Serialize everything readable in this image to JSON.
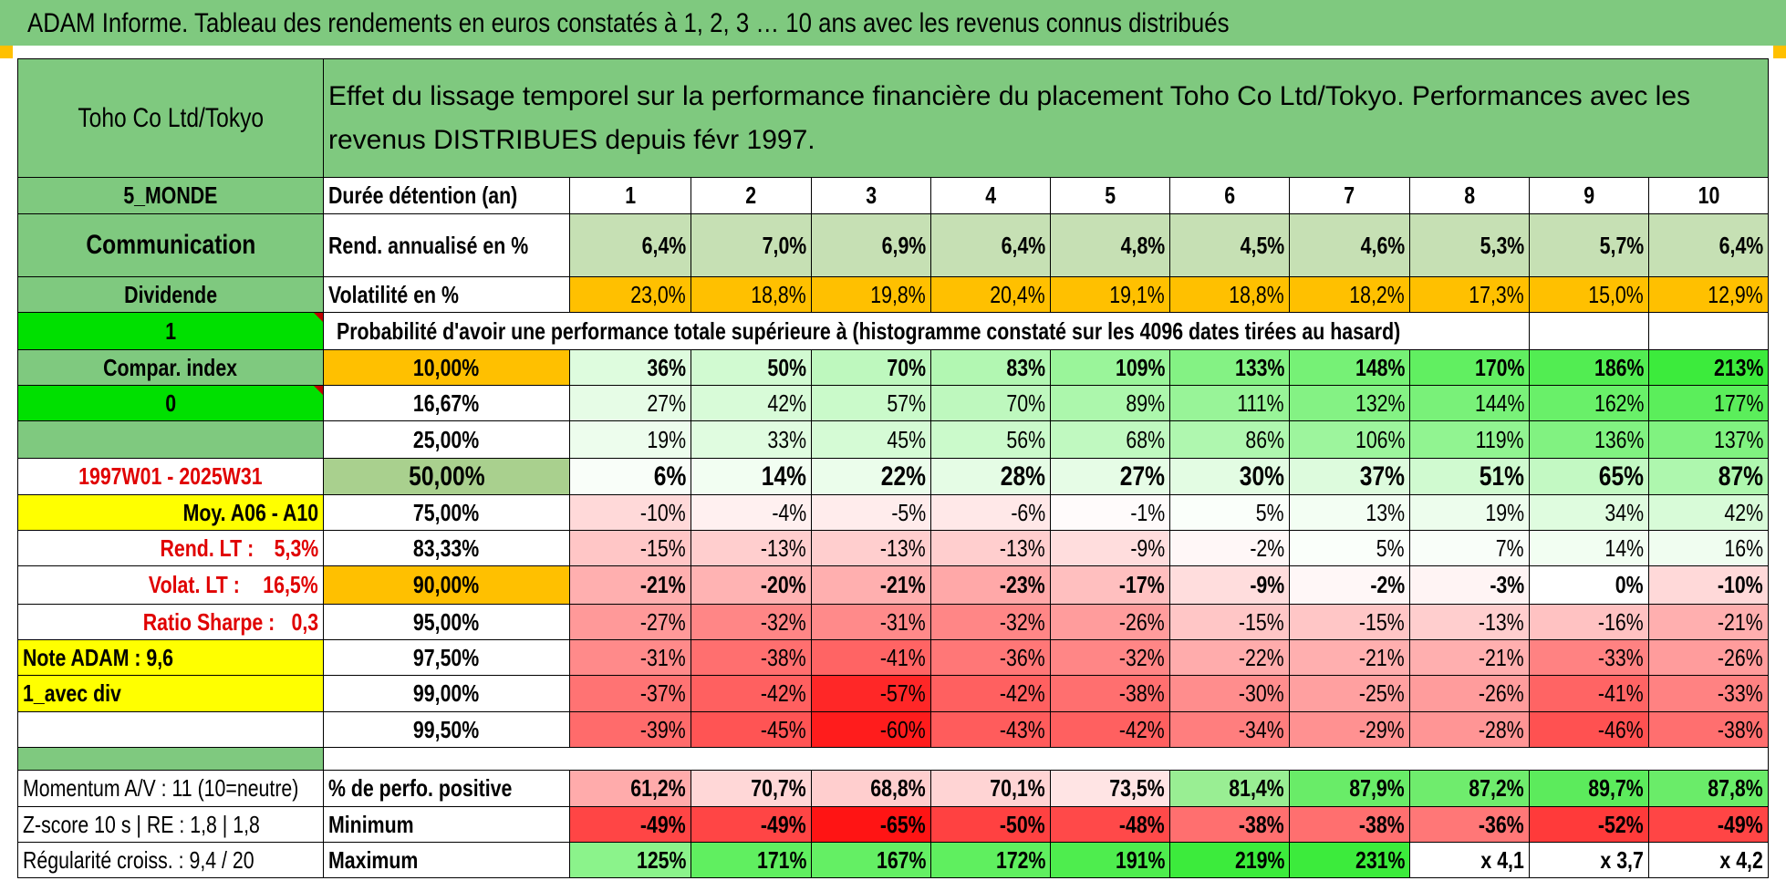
{
  "title": "ADAM Informe. Tableau des rendements en euros constatés à 1, 2, 3 … 10 ans avec les revenus connus distribués",
  "left": {
    "company": "Toho Co Ltd/Tokyo",
    "region": "5_MONDE",
    "sector": "Communication",
    "type": "Dividende",
    "flag1": "1",
    "compar_label": "Compar. index",
    "flag2": "0",
    "period": "1997W01 - 2025W31",
    "moy": "Moy. A06 - A10",
    "rend_lt_label": "Rend. LT :",
    "rend_lt_value": "5,3%",
    "volat_lt_label": "Volat. LT :",
    "volat_lt_value": "16,5%",
    "sharpe_label": "Ratio Sharpe :",
    "sharpe_value": "0,3",
    "note": "Note ADAM : 9,6",
    "mode": "1_avec div",
    "momentum": "Momentum A/V : 11 (10=neutre)",
    "zscore": "Z-score 10 s | RE : 1,8 | 1,8",
    "regularite": "Régularité croiss. : 9,4 / 20"
  },
  "header_text": "Effet du lissage temporel sur la performance financière du placement Toho Co Ltd/Tokyo. Performances avec les revenus DISTRIBUES depuis févr 1997.",
  "labels": {
    "duree": "Durée détention (an)",
    "rend": "Rend. annualisé en %",
    "vol": "Volatilité en %",
    "prob": "Probabilité d'avoir une performance totale supérieure à (histogramme constaté sur les 4096 dates tirées au hasard)",
    "pos": "% de perfo. positive",
    "min": "Minimum",
    "max": "Maximum"
  },
  "years": [
    "1",
    "2",
    "3",
    "4",
    "5",
    "6",
    "7",
    "8",
    "9",
    "10"
  ],
  "rend": [
    "6,4%",
    "7,0%",
    "6,9%",
    "6,4%",
    "4,8%",
    "4,5%",
    "4,6%",
    "5,3%",
    "5,7%",
    "6,4%"
  ],
  "vol": [
    "23,0%",
    "18,8%",
    "19,8%",
    "20,4%",
    "19,1%",
    "18,8%",
    "18,2%",
    "17,3%",
    "15,0%",
    "12,9%"
  ],
  "prob_rows": [
    {
      "pct": "10,00%",
      "values": [
        "36%",
        "50%",
        "70%",
        "83%",
        "109%",
        "133%",
        "148%",
        "170%",
        "186%",
        "213%"
      ]
    },
    {
      "pct": "16,67%",
      "values": [
        "27%",
        "42%",
        "57%",
        "70%",
        "89%",
        "111%",
        "132%",
        "144%",
        "162%",
        "177%"
      ]
    },
    {
      "pct": "25,00%",
      "values": [
        "19%",
        "33%",
        "45%",
        "56%",
        "68%",
        "86%",
        "106%",
        "119%",
        "136%",
        "137%"
      ]
    },
    {
      "pct": "50,00%",
      "values": [
        "6%",
        "14%",
        "22%",
        "28%",
        "27%",
        "30%",
        "37%",
        "51%",
        "65%",
        "87%"
      ]
    },
    {
      "pct": "75,00%",
      "values": [
        "-10%",
        "-4%",
        "-5%",
        "-6%",
        "-1%",
        "5%",
        "13%",
        "19%",
        "34%",
        "42%"
      ]
    },
    {
      "pct": "83,33%",
      "values": [
        "-15%",
        "-13%",
        "-13%",
        "-13%",
        "-9%",
        "-2%",
        "5%",
        "7%",
        "14%",
        "16%"
      ]
    },
    {
      "pct": "90,00%",
      "values": [
        "-21%",
        "-20%",
        "-21%",
        "-23%",
        "-17%",
        "-9%",
        "-2%",
        "-3%",
        "0%",
        "-10%"
      ]
    },
    {
      "pct": "95,00%",
      "values": [
        "-27%",
        "-32%",
        "-31%",
        "-32%",
        "-26%",
        "-15%",
        "-15%",
        "-13%",
        "-16%",
        "-21%"
      ]
    },
    {
      "pct": "97,50%",
      "values": [
        "-31%",
        "-38%",
        "-41%",
        "-36%",
        "-32%",
        "-22%",
        "-21%",
        "-21%",
        "-33%",
        "-26%"
      ]
    },
    {
      "pct": "99,00%",
      "values": [
        "-37%",
        "-42%",
        "-57%",
        "-42%",
        "-38%",
        "-30%",
        "-25%",
        "-26%",
        "-41%",
        "-33%"
      ]
    },
    {
      "pct": "99,50%",
      "values": [
        "-39%",
        "-45%",
        "-60%",
        "-43%",
        "-42%",
        "-34%",
        "-29%",
        "-28%",
        "-46%",
        "-38%"
      ]
    }
  ],
  "pos": [
    "61,2%",
    "70,7%",
    "68,8%",
    "70,1%",
    "73,5%",
    "81,4%",
    "87,9%",
    "87,2%",
    "89,7%",
    "87,8%"
  ],
  "min": [
    "-49%",
    "-49%",
    "-65%",
    "-50%",
    "-48%",
    "-38%",
    "-38%",
    "-36%",
    "-52%",
    "-49%"
  ],
  "max": [
    "125%",
    "171%",
    "167%",
    "172%",
    "191%",
    "219%",
    "231%",
    "x 4,1",
    "x 3,7",
    "x 4,2"
  ],
  "colors": {
    "header_green": "#7fc97f",
    "flag_green": "#00e000",
    "yellow": "#ffff00",
    "orange": "#ffc000",
    "rend_green": "#c6e0b4",
    "red_text": "#e00000",
    "median_green": "#a9d08e"
  }
}
